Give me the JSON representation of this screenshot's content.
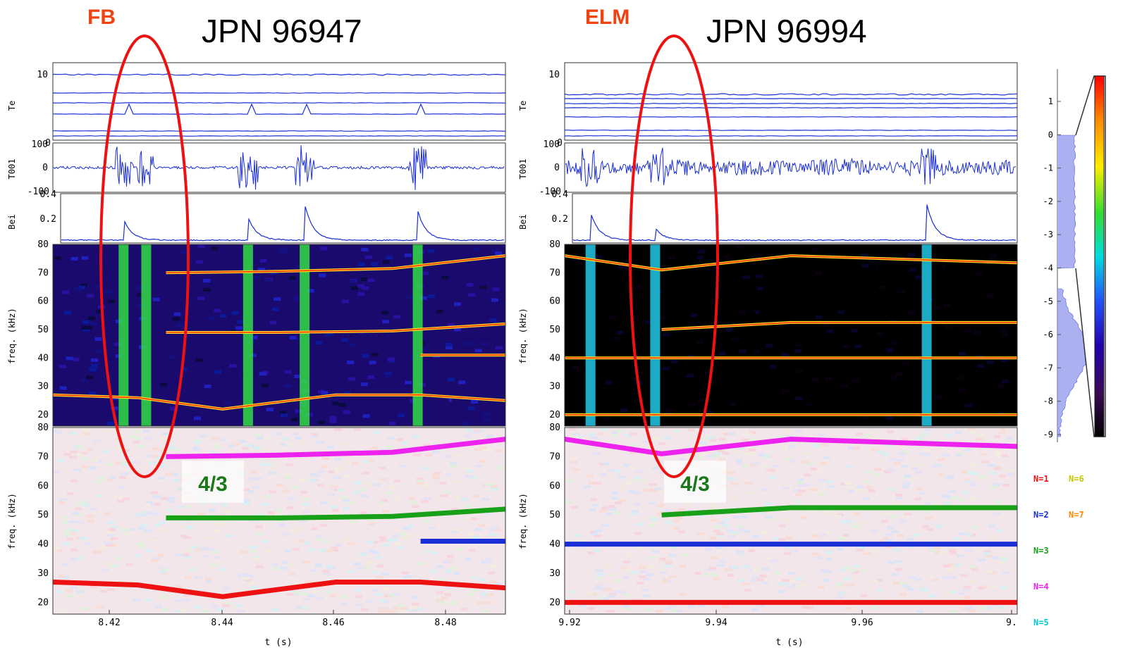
{
  "colors": {
    "trace": "#1a2fd6",
    "highlight": "#ee1111",
    "annotation_text": "#1a7a1a",
    "label_orange": "#ee4411"
  },
  "left": {
    "tag": "FB",
    "title": "JPN 96947",
    "te_label": "Te",
    "te_ticks": [
      "10",
      "0"
    ],
    "t001_label": "T001",
    "t001_ticks": [
      "100",
      "0",
      "-100"
    ],
    "bei_label": "Bei",
    "bei_ticks": [
      "0.4",
      "0.2",
      "0"
    ],
    "freq_label": "freq. (kHz)",
    "freq_ticks": [
      "80",
      "70",
      "60",
      "50",
      "40",
      "30",
      "20"
    ],
    "mode_freq_ticks": [
      "80",
      "70",
      "60",
      "50",
      "40",
      "30",
      "20"
    ],
    "annotation": "4/3",
    "x_ticks": [
      "8.42",
      "8.44",
      "8.46",
      "8.48"
    ],
    "x_label": "t (s)"
  },
  "right": {
    "tag": "ELM",
    "title": "JPN 96994",
    "te_label": "Te",
    "te_ticks": [
      "10",
      "0"
    ],
    "t001_label": "T001",
    "t001_ticks": [
      "100",
      "0",
      "-100"
    ],
    "bei_label": "Bei",
    "bei_ticks": [
      "0.4",
      "0.2",
      "0"
    ],
    "freq_label": "freq. (kHz)",
    "freq_ticks": [
      "80",
      "70",
      "60",
      "50",
      "40",
      "30",
      "20"
    ],
    "mode_freq_ticks": [
      "80",
      "70",
      "60",
      "50",
      "40",
      "30",
      "20"
    ],
    "annotation": "4/3",
    "x_ticks": [
      "9.92",
      "9.94",
      "9.96",
      "9."
    ],
    "x_label": "t (s)"
  },
  "colorbar": {
    "ticks": [
      "1",
      "0",
      "-1",
      "-2",
      "-3",
      "-4",
      "-5",
      "-6",
      "-7",
      "-8",
      "-9"
    ]
  },
  "legend": [
    {
      "label": "N=1",
      "color": "#ee1111"
    },
    {
      "label": "N=6",
      "color": "#c8c800"
    },
    {
      "label": "N=2",
      "color": "#1a2fd6"
    },
    {
      "label": "N=7",
      "color": "#ff8800"
    },
    {
      "label": "N=3",
      "color": "#18a018"
    },
    {
      "label": "N=4",
      "color": "#ee22ee"
    },
    {
      "label": "N=5",
      "color": "#00c8d8"
    }
  ],
  "chart_data": [
    {
      "type": "heatmap",
      "title": "JPN 96947",
      "tag": "FB",
      "xlabel": "t (s)",
      "ylabel": "freq. (kHz)",
      "xlim": [
        8.41,
        8.49
      ],
      "ylim": [
        16,
        80
      ],
      "x_ticks": [
        8.42,
        8.44,
        8.46,
        8.48
      ],
      "mode_lines_khz": [
        {
          "name": "N=4",
          "x": [
            8.43,
            8.45,
            8.47,
            8.49
          ],
          "y": [
            70,
            70.5,
            71.5,
            76
          ]
        },
        {
          "name": "N=3",
          "x": [
            8.43,
            8.45,
            8.47,
            8.49
          ],
          "y": [
            49,
            49,
            49.5,
            52
          ]
        },
        {
          "name": "N=2",
          "x": [
            8.475,
            8.49
          ],
          "y": [
            41,
            41
          ]
        },
        {
          "name": "N=1",
          "x": [
            8.41,
            8.425,
            8.44,
            8.46,
            8.475,
            8.49
          ],
          "y": [
            27,
            26,
            22,
            27,
            27,
            25
          ]
        }
      ],
      "burst_times": [
        8.4225,
        8.4265,
        8.4445,
        8.4545,
        8.4745
      ]
    },
    {
      "type": "heatmap",
      "title": "JPN 96994",
      "tag": "ELM",
      "xlabel": "t (s)",
      "ylabel": "freq. (kHz)",
      "xlim": [
        9.92,
        9.99
      ],
      "ylim": [
        16,
        80
      ],
      "x_ticks": [
        9.92,
        9.94,
        9.96
      ],
      "mode_lines_khz": [
        {
          "name": "N=4",
          "x": [
            9.92,
            9.935,
            9.955,
            9.99
          ],
          "y": [
            76,
            71,
            76,
            73.5
          ]
        },
        {
          "name": "N=3",
          "x": [
            9.935,
            9.955,
            9.99
          ],
          "y": [
            50,
            52.5,
            52.5
          ]
        },
        {
          "name": "N=2",
          "x": [
            9.92,
            9.99
          ],
          "y": [
            40,
            40
          ]
        },
        {
          "name": "N=1",
          "x": [
            9.92,
            9.99
          ],
          "y": [
            20,
            20
          ]
        }
      ],
      "burst_times": [
        9.924,
        9.934,
        9.976
      ]
    }
  ]
}
